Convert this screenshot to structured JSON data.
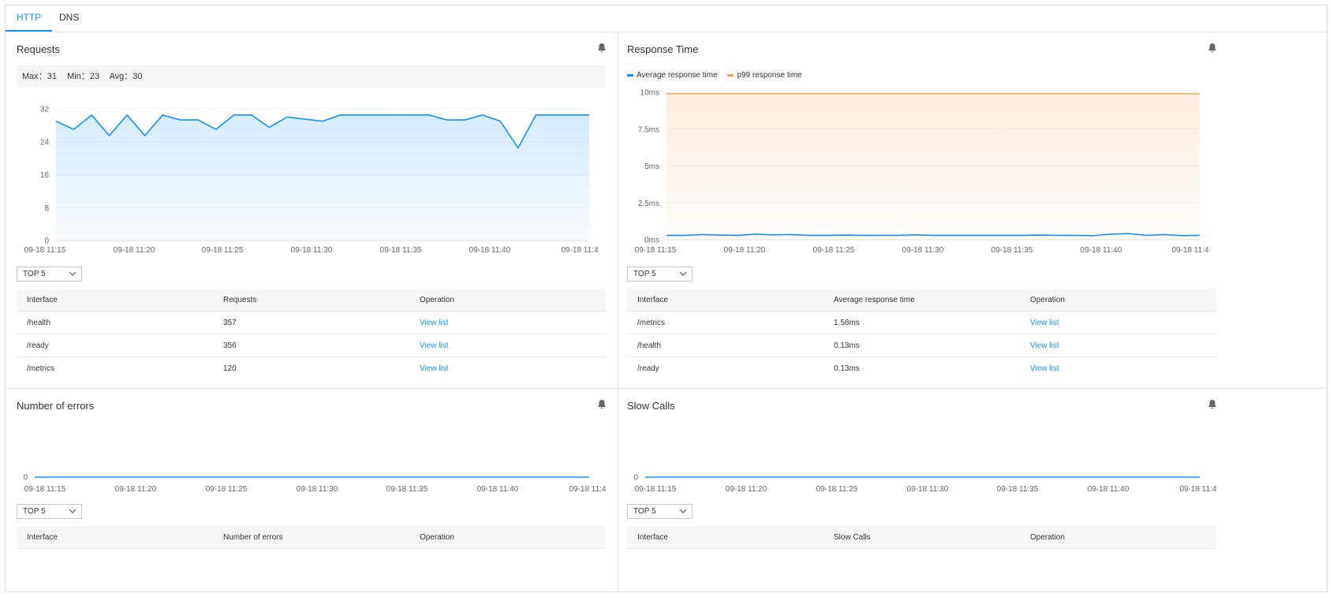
{
  "tabs": [
    {
      "label": "HTTP",
      "active": true
    },
    {
      "label": "DNS",
      "active": false
    }
  ],
  "colors": {
    "accent": "#1890ff",
    "p99": "#f7a35c",
    "grid": "#f0f0f0"
  },
  "x_ticks": [
    "09-18 11:15",
    "09-18 11:20",
    "09-18 11:25",
    "09-18 11:30",
    "09-18 11:35",
    "09-18 11:40",
    "09-18 11:4"
  ],
  "requests": {
    "title": "Requests",
    "icon": "bell-icon",
    "stats": {
      "max": "Max：31",
      "min": "Min：23",
      "avg": "Avg：30"
    },
    "select": "TOP 5",
    "headers": [
      "Interface",
      "Requests",
      "Operation"
    ],
    "rows": [
      {
        "interface": "/health",
        "value": "357",
        "op": "View list"
      },
      {
        "interface": "/ready",
        "value": "356",
        "op": "View list"
      },
      {
        "interface": "/metrics",
        "value": "120",
        "op": "View list"
      }
    ]
  },
  "response_time": {
    "title": "Response Time",
    "icon": "bell-icon",
    "legend": [
      "Average response time",
      "p99 response time"
    ],
    "select": "TOP 5",
    "headers": [
      "Interface",
      "Average response time",
      "Operation"
    ],
    "rows": [
      {
        "interface": "/metrics",
        "value": "1.58ms",
        "op": "View list"
      },
      {
        "interface": "/health",
        "value": "0.13ms",
        "op": "View list"
      },
      {
        "interface": "/ready",
        "value": "0.13ms",
        "op": "View list"
      }
    ]
  },
  "errors": {
    "title": "Number of errors",
    "icon": "bell-icon",
    "select": "TOP 5",
    "headers": [
      "Interface",
      "Number of errors",
      "Operation"
    ]
  },
  "slow_calls": {
    "title": "Slow Calls",
    "icon": "bell-icon",
    "select": "TOP 5",
    "headers": [
      "Interface",
      "Slow Calls",
      "Operation"
    ]
  },
  "chart_data": [
    {
      "type": "area",
      "ylim": [
        0,
        32
      ],
      "y_ticks": [
        "0",
        "8",
        "16",
        "24",
        "32"
      ],
      "series": [
        {
          "values": [
            29,
            27,
            30.5,
            25.5,
            30.5,
            25.5,
            30.5,
            29.3,
            29.3,
            27,
            30.5,
            30.5,
            27.5,
            30,
            29.5,
            29,
            30.5,
            30.5,
            30.5,
            30.5,
            30.5,
            30.5,
            29.3,
            29.3,
            30.5,
            29,
            22.5,
            30.5,
            30.5,
            30.5,
            30.5
          ]
        }
      ]
    },
    {
      "type": "area",
      "ylim": [
        0,
        10
      ],
      "y_ticks": [
        "0ms",
        "2.5ms",
        "5ms",
        "7.5ms",
        "10ms"
      ],
      "series": [
        {
          "name": "Average response time",
          "values": [
            0.3,
            0.3,
            0.35,
            0.32,
            0.3,
            0.38,
            0.33,
            0.35,
            0.3,
            0.3,
            0.32,
            0.3,
            0.3,
            0.3,
            0.33,
            0.3,
            0.3,
            0.3,
            0.3,
            0.3,
            0.3,
            0.32,
            0.3,
            0.3,
            0.28,
            0.38,
            0.42,
            0.3,
            0.35,
            0.28,
            0.3
          ]
        },
        {
          "name": "p99 response time",
          "values": [
            9.9,
            9.9,
            9.9,
            9.9,
            9.9,
            9.9,
            9.9,
            9.9,
            9.9,
            9.9,
            9.9,
            9.9,
            9.9,
            9.9,
            9.9,
            9.9,
            9.9,
            9.9,
            9.9,
            9.9,
            9.9,
            9.9,
            9.9,
            9.9,
            9.9,
            9.9,
            9.9,
            9.9,
            9.9,
            9.9,
            9.9
          ]
        }
      ]
    },
    {
      "type": "line",
      "ylim": [
        0,
        1
      ],
      "y_ticks": [
        "0"
      ],
      "series": [
        {
          "values": [
            0,
            0,
            0,
            0,
            0,
            0,
            0,
            0,
            0,
            0,
            0,
            0,
            0,
            0,
            0,
            0,
            0,
            0,
            0,
            0,
            0,
            0,
            0,
            0,
            0,
            0,
            0,
            0,
            0,
            0,
            0
          ]
        }
      ]
    },
    {
      "type": "line",
      "ylim": [
        0,
        1
      ],
      "y_ticks": [
        "0"
      ],
      "series": [
        {
          "values": [
            0,
            0,
            0,
            0,
            0,
            0,
            0,
            0,
            0,
            0,
            0,
            0,
            0,
            0,
            0,
            0,
            0,
            0,
            0,
            0,
            0,
            0,
            0,
            0,
            0,
            0,
            0,
            0,
            0,
            0,
            0
          ]
        }
      ]
    }
  ]
}
